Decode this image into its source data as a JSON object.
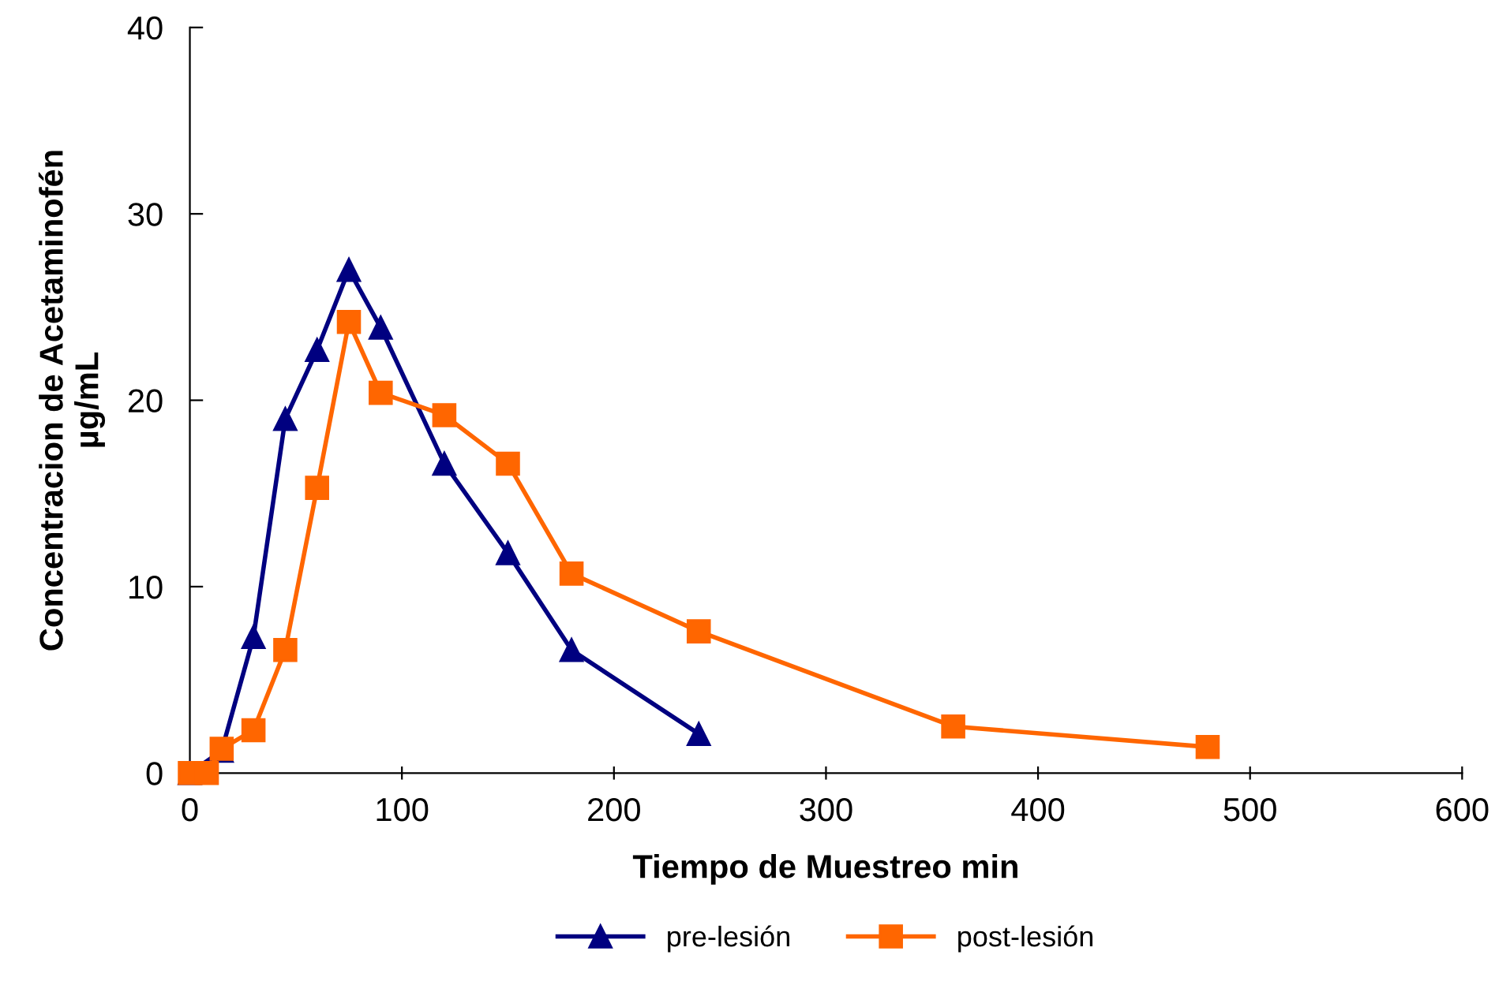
{
  "chart_data": {
    "type": "line",
    "xlabel": "Tiempo de Muestreo min",
    "ylabel": "Concentracion de Acetaminofén\nµg/mL",
    "xlim": [
      0,
      600
    ],
    "xticks": [
      0,
      100,
      200,
      300,
      400,
      500,
      600
    ],
    "ylim": [
      0,
      40
    ],
    "yticks": [
      0,
      10,
      20,
      30,
      40
    ],
    "grid": false,
    "legend": "bottom",
    "series": [
      {
        "name": "pre-lesión",
        "color": "#000080",
        "marker": "triangle",
        "x": [
          0,
          15,
          30,
          45,
          60,
          75,
          90,
          120,
          150,
          180,
          240
        ],
        "values": [
          0,
          1.2,
          7.3,
          19.0,
          22.7,
          27.0,
          23.9,
          16.6,
          11.8,
          6.6,
          2.1
        ]
      },
      {
        "name": "post-lesión",
        "color": "#ff6600",
        "marker": "square",
        "x": [
          0,
          8,
          15,
          30,
          45,
          60,
          75,
          90,
          120,
          150,
          180,
          240,
          360,
          480
        ],
        "values": [
          0,
          0,
          1.3,
          2.3,
          6.6,
          15.3,
          24.2,
          20.4,
          19.2,
          16.6,
          10.7,
          7.6,
          2.5,
          1.4
        ]
      }
    ]
  }
}
